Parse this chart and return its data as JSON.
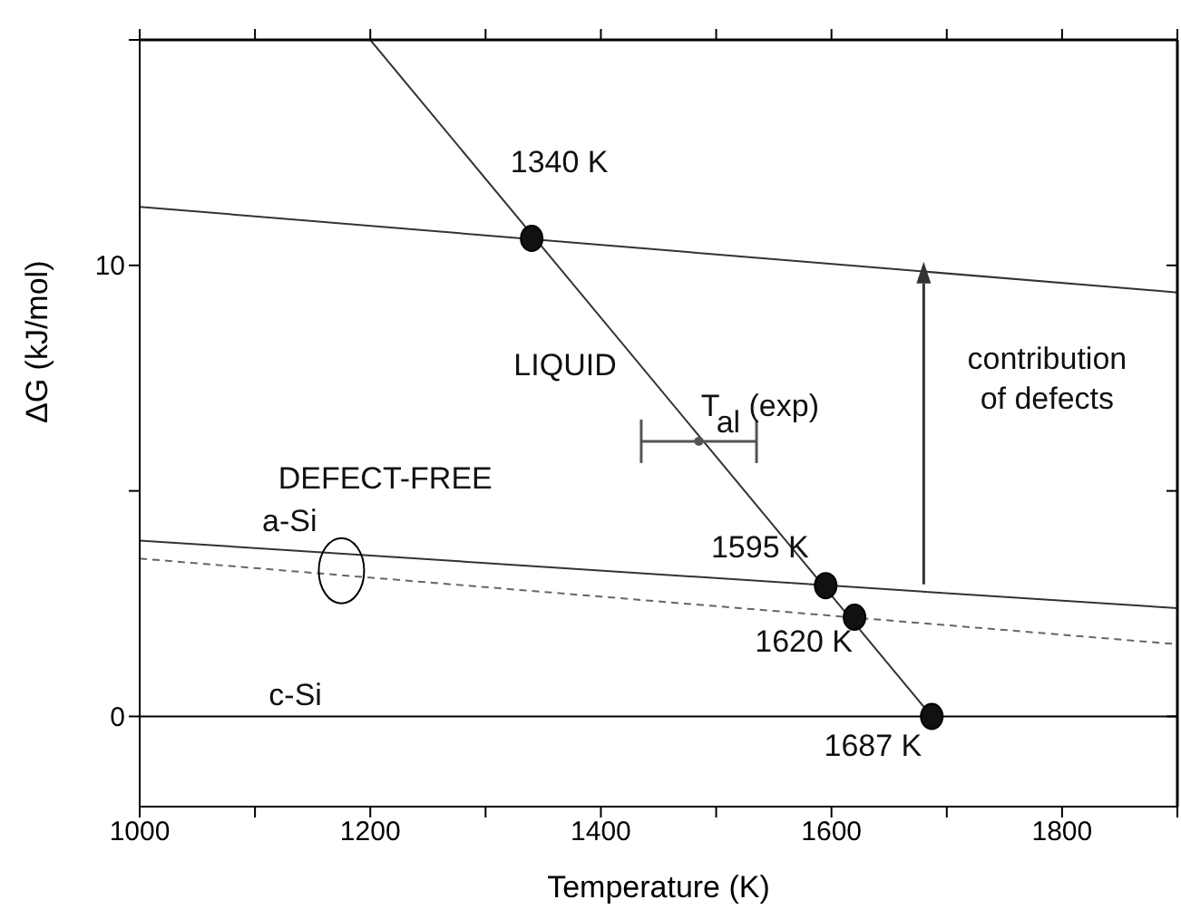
{
  "chart_data": {
    "type": "line",
    "xlabel": "Temperature (K)",
    "ylabel": "ΔG (kJ/mol)",
    "xlim": [
      1000,
      1900
    ],
    "ylim": [
      -2,
      15
    ],
    "xticks": [
      1000,
      {
        "value": 1100,
        "label": null
      },
      1200,
      {
        "value": 1300,
        "label": null
      },
      1400,
      {
        "value": 1500,
        "label": null
      },
      1600,
      {
        "value": 1700,
        "label": null
      },
      1800,
      {
        "value": 1900,
        "label": null
      }
    ],
    "yticks": [
      0,
      {
        "value": 5,
        "label": null
      },
      10,
      {
        "value": 15,
        "label": null
      }
    ],
    "series": [
      {
        "x": [
          1000,
          1900
        ],
        "values": [
          0,
          0
        ],
        "color": "#000000",
        "line_style": "solid",
        "marker": "none"
      },
      {
        "x": [
          1200,
          1687
        ],
        "values": [
          15,
          0
        ],
        "color": "#333333",
        "line_style": "solid",
        "marker": "none"
      },
      {
        "x": [
          1000,
          1900
        ],
        "values": [
          11.3,
          9.4
        ],
        "color": "#333333",
        "line_style": "solid",
        "marker": "none"
      },
      {
        "x": [
          1000,
          1900
        ],
        "values": [
          3.9,
          2.4
        ],
        "color": "#333333",
        "line_style": "solid",
        "marker": "none"
      },
      {
        "x": [
          1000,
          1900
        ],
        "values": [
          3.5,
          1.6
        ],
        "color": "#666666",
        "line_style": "dashed",
        "marker": "none"
      },
      {
        "type": "scatter",
        "x": [
          1340,
          1595,
          1620,
          1687
        ],
        "values": [
          10.6,
          2.9,
          2.2,
          0
        ],
        "color": "#111111",
        "marker": "circle"
      },
      {
        "type": "scatter",
        "x": [
          1485
        ],
        "values": [
          6.1
        ],
        "xerrors": [
          50
        ],
        "color": "#555555"
      }
    ],
    "annotations": [
      "1340 K",
      "LIQUID",
      "T$_{al}$ (exp)",
      "contribution of defects",
      "DEFECT-FREE",
      "a-Si",
      "1595 K",
      "1620 K",
      "1687 K",
      "c-Si"
    ]
  }
}
